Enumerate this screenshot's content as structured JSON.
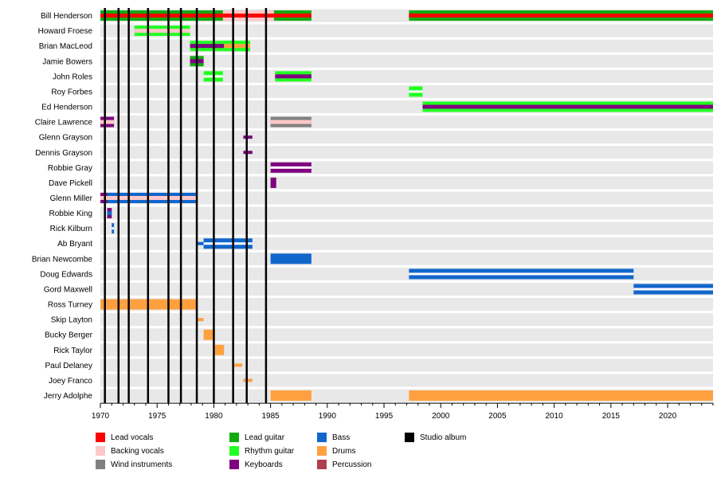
{
  "chart_data": {
    "type": "timeline",
    "xlim": [
      1970,
      2024
    ],
    "x_ticks": [
      1970,
      1975,
      1980,
      1985,
      1990,
      1995,
      2000,
      2005,
      2010,
      2015,
      2020
    ],
    "studio_albums": [
      1970.4,
      1971.6,
      1972.5,
      1974.2,
      1976.0,
      1977.1,
      1978.5,
      1980.0,
      1981.7,
      1982.9,
      1984.6
    ],
    "members": [
      {
        "name": "Bill Henderson",
        "spans": [
          {
            "role": "lead_guitar",
            "start": 1970.0,
            "end": 1988.6,
            "overlay": "lead_vocals"
          },
          {
            "role": "backing_vocals",
            "start": 1980.8,
            "end": 1985.3,
            "overlay": "lead_vocals"
          },
          {
            "role": "lead_guitar",
            "start": 1997.2,
            "end": 2024.0,
            "overlay": "lead_vocals"
          }
        ]
      },
      {
        "name": "Howard Froese",
        "spans": [
          {
            "role": "rhythm_guitar",
            "start": 1973.0,
            "end": 1977.9,
            "overlay": "backing_vocals"
          }
        ]
      },
      {
        "name": "Brian MacLeod",
        "spans": [
          {
            "role": "rhythm_guitar",
            "start": 1977.9,
            "end": 1983.2,
            "overlay": "keyboards"
          },
          {
            "role": "rhythm_guitar",
            "start": 1980.9,
            "end": 1983.2,
            "overlay": "drums"
          }
        ]
      },
      {
        "name": "Jamie Bowers",
        "spans": [
          {
            "role": "lead_guitar",
            "start": 1977.9,
            "end": 1979.1,
            "overlay": "keyboards"
          }
        ]
      },
      {
        "name": "John Roles",
        "spans": [
          {
            "role": "rhythm_guitar",
            "start": 1979.1,
            "end": 1980.8,
            "overlay": null
          },
          {
            "role": "rhythm_guitar",
            "start": 1985.4,
            "end": 1988.6,
            "overlay": "keyboards"
          }
        ]
      },
      {
        "name": "Roy Forbes",
        "spans": [
          {
            "role": "rhythm_guitar",
            "start": 1997.2,
            "end": 1998.4,
            "overlay": null
          }
        ]
      },
      {
        "name": "Ed Henderson",
        "spans": [
          {
            "role": "rhythm_guitar",
            "start": 1998.4,
            "end": 2024.0,
            "overlay": "keyboards"
          }
        ]
      },
      {
        "name": "Claire Lawrence",
        "spans": [
          {
            "role": "keyboards",
            "start": 1970.0,
            "end": 1971.2,
            "overlay": "backing_vocals"
          },
          {
            "role": "wind_instruments",
            "start": 1985.0,
            "end": 1988.6,
            "overlay": "backing_vocals"
          }
        ]
      },
      {
        "name": "Glenn Grayson",
        "spans": [
          {
            "role": "keyboards_thin",
            "start": 1982.6,
            "end": 1983.4,
            "overlay": null
          }
        ]
      },
      {
        "name": "Dennis Grayson",
        "spans": [
          {
            "role": "keyboards_thin",
            "start": 1982.6,
            "end": 1983.4,
            "overlay": null
          }
        ]
      },
      {
        "name": "Robbie Gray",
        "spans": [
          {
            "role": "keyboards",
            "start": 1985.0,
            "end": 1988.6,
            "overlay": "white_gap"
          }
        ]
      },
      {
        "name": "Dave Pickell",
        "spans": [
          {
            "role": "keyboards_full",
            "start": 1985.0,
            "end": 1985.5,
            "overlay": null
          }
        ]
      },
      {
        "name": "Glenn Miller",
        "spans": [
          {
            "role": "bass",
            "start": 1970.0,
            "end": 1978.5,
            "overlay": "backing_vocals"
          },
          {
            "role": "keyboards",
            "start": 1970.0,
            "end": 1970.6,
            "overlay": "backing_vocals"
          }
        ]
      },
      {
        "name": "Robbie King",
        "spans": [
          {
            "role": "keyboards_full",
            "start": 1970.6,
            "end": 1971.0,
            "overlay": "bass"
          }
        ]
      },
      {
        "name": "Rick Kilburn",
        "spans": [
          {
            "role": "bass",
            "start": 1971.0,
            "end": 1971.2,
            "overlay": null
          }
        ]
      },
      {
        "name": "Ab Bryant",
        "spans": [
          {
            "role": "bass_thin",
            "start": 1978.5,
            "end": 1979.1,
            "overlay": null
          },
          {
            "role": "bass",
            "start": 1979.1,
            "end": 1983.4,
            "overlay": null
          }
        ]
      },
      {
        "name": "Brian Newcombe",
        "spans": [
          {
            "role": "bass_full",
            "start": 1985.0,
            "end": 1988.6,
            "overlay": null
          }
        ]
      },
      {
        "name": "Doug Edwards",
        "spans": [
          {
            "role": "bass",
            "start": 1997.2,
            "end": 2017.0,
            "overlay": null
          }
        ]
      },
      {
        "name": "Gord Maxwell",
        "spans": [
          {
            "role": "bass",
            "start": 2017.0,
            "end": 2024.0,
            "overlay": null
          }
        ]
      },
      {
        "name": "Ross Turney",
        "spans": [
          {
            "role": "drums",
            "start": 1970.0,
            "end": 1978.5,
            "overlay": null
          }
        ]
      },
      {
        "name": "Skip Layton",
        "spans": [
          {
            "role": "drums_thin",
            "start": 1978.5,
            "end": 1979.1,
            "overlay": null
          }
        ]
      },
      {
        "name": "Bucky Berger",
        "spans": [
          {
            "role": "drums_full",
            "start": 1979.1,
            "end": 1980.1,
            "overlay": null
          }
        ]
      },
      {
        "name": "Rick Taylor",
        "spans": [
          {
            "role": "drums_full",
            "start": 1980.1,
            "end": 1980.9,
            "overlay": null
          }
        ]
      },
      {
        "name": "Paul Delaney",
        "spans": [
          {
            "role": "drums_thin",
            "start": 1981.8,
            "end": 1982.5,
            "overlay": null
          }
        ]
      },
      {
        "name": "Joey Franco",
        "spans": [
          {
            "role": "drums_thin",
            "start": 1982.6,
            "end": 1983.4,
            "overlay": null
          }
        ]
      },
      {
        "name": "Jerry Adolphe",
        "spans": [
          {
            "role": "drums_full",
            "start": 1985.0,
            "end": 1988.6,
            "overlay": null
          },
          {
            "role": "drums_full",
            "start": 1997.2,
            "end": 2024.0,
            "overlay": null
          }
        ]
      }
    ],
    "legend": [
      {
        "key": "lead_vocals",
        "label": "Lead vocals",
        "color": "#ff0000"
      },
      {
        "key": "backing_vocals",
        "label": "Backing vocals",
        "color": "#ffc8c8"
      },
      {
        "key": "wind_instruments",
        "label": "Wind instruments",
        "color": "#808080"
      },
      {
        "key": "lead_guitar",
        "label": "Lead guitar",
        "color": "#11aa11"
      },
      {
        "key": "rhythm_guitar",
        "label": "Rhythm guitar",
        "color": "#22ff22"
      },
      {
        "key": "keyboards",
        "label": "Keyboards",
        "color": "#800080"
      },
      {
        "key": "bass",
        "label": "Bass",
        "color": "#1166cc"
      },
      {
        "key": "drums",
        "label": "Drums",
        "color": "#ffa040"
      },
      {
        "key": "percussion",
        "label": "Percussion",
        "color": "#b04050"
      },
      {
        "key": "studio_album",
        "label": "Studio album",
        "color": "#000000"
      }
    ]
  }
}
